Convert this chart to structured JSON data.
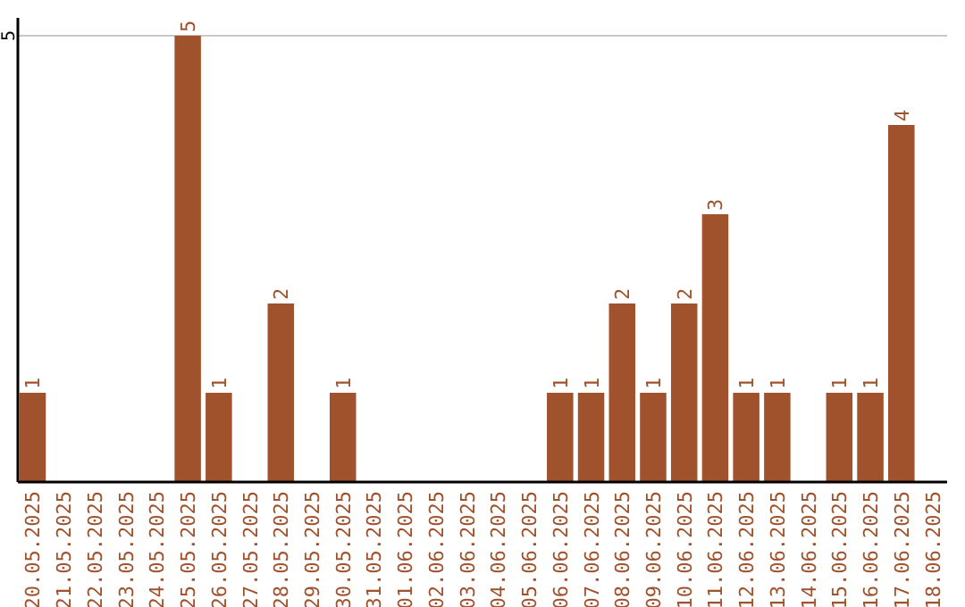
{
  "chart_data": {
    "type": "bar",
    "categories": [
      "20.05.2025",
      "21.05.2025",
      "22.05.2025",
      "23.05.2025",
      "24.05.2025",
      "25.05.2025",
      "26.05.2025",
      "27.05.2025",
      "28.05.2025",
      "29.05.2025",
      "30.05.2025",
      "31.05.2025",
      "01.06.2025",
      "02.06.2025",
      "03.06.2025",
      "04.06.2025",
      "05.06.2025",
      "06.06.2025",
      "07.06.2025",
      "08.06.2025",
      "09.06.2025",
      "10.06.2025",
      "11.06.2025",
      "12.06.2025",
      "13.06.2025",
      "14.06.2025",
      "15.06.2025",
      "16.06.2025",
      "17.06.2025",
      "18.06.2025"
    ],
    "values": [
      1,
      0,
      0,
      0,
      0,
      5,
      1,
      0,
      2,
      0,
      1,
      0,
      0,
      0,
      0,
      0,
      0,
      1,
      1,
      2,
      1,
      2,
      3,
      1,
      1,
      0,
      1,
      1,
      4,
      0
    ],
    "value_labels": [
      "1",
      null,
      null,
      null,
      null,
      "5",
      "1",
      null,
      "2",
      null,
      "1",
      null,
      null,
      null,
      null,
      null,
      null,
      "1",
      "1",
      "2",
      "1",
      "2",
      "3",
      "1",
      "1",
      null,
      "1",
      "1",
      "4",
      null
    ],
    "color": "#a0522d",
    "ylim": [
      0,
      5.2
    ],
    "yticks": [
      5
    ],
    "grid": "y"
  }
}
